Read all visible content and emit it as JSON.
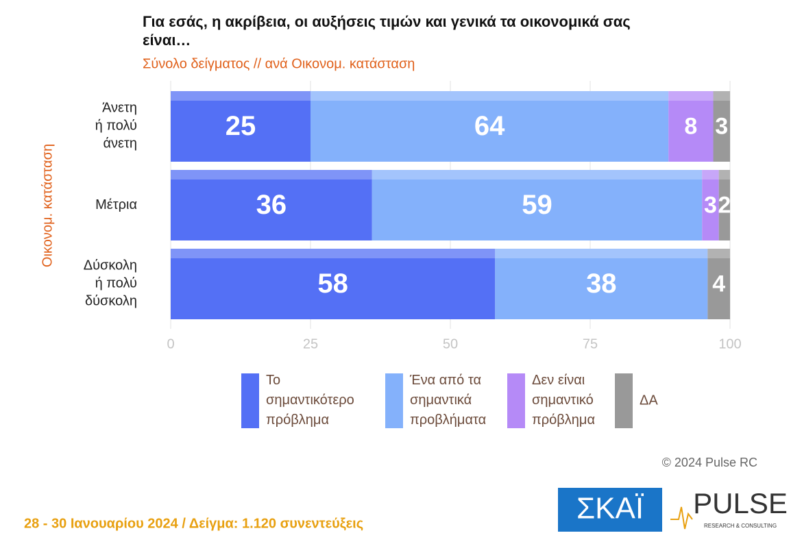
{
  "chart_data": {
    "type": "stacked-bar",
    "title": "Για εσάς, η ακρίβεια, οι αυξήσεις τιμών και γενικά τα οικονομικά σας\nείναι…",
    "subtitle": "Σύνολο δείγματος // ανά Οικονομ. κατάσταση",
    "y_label": "Οικονομ. κατάσταση",
    "categories": [
      "Άνετη\nή πολύ\nάνετη",
      "Μέτρια",
      "Δύσκολη\nή πολύ\nδύσκολη"
    ],
    "series": [
      {
        "name": "Το\nσημαντικότερο\nπρόβλημα",
        "color": "#5470f5",
        "values": [
          25,
          36,
          58
        ]
      },
      {
        "name": "Ένα από τα\nσημαντικά\nπροβλήματα",
        "color": "#84b1fb",
        "values": [
          64,
          59,
          38
        ]
      },
      {
        "name": "Δεν είναι\nσημαντικό\nπρόβλημα",
        "color": "#b58af7",
        "values": [
          8,
          3,
          null
        ]
      },
      {
        "name": "ΔΑ",
        "color": "#999999",
        "values": [
          3,
          2,
          4
        ]
      }
    ],
    "xlim": [
      0,
      100
    ],
    "xticks": [
      0,
      25,
      50,
      75,
      100
    ],
    "grid": true
  },
  "footer": {
    "copyright": "© 2024 Pulse RC",
    "note": "28 - 30  Ιανουαρίου  2024  /  Δείγμα:  1.120 συνεντεύξεις",
    "logo_skai": "ΣΚΑΪ",
    "logo_pulse": "PULSE",
    "logo_pulse_sub": "RESEARCH & CONSULTING"
  }
}
